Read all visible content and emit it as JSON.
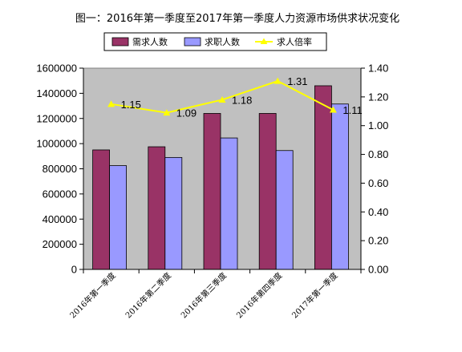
{
  "chart_data": {
    "type": "bar",
    "title": "图一：2016年第一季度至2017年第一季度人力资源市场供求状况变化",
    "categories": [
      "2016年第一季度",
      "2016年第二季度",
      "2016年第三季度",
      "2016年第四季度",
      "2017年第一季度"
    ],
    "series": [
      {
        "name": "需求人数",
        "type": "bar",
        "axis": "left",
        "color": "#993366",
        "values": [
          950000,
          975000,
          1240000,
          1240000,
          1460000
        ]
      },
      {
        "name": "求职人数",
        "type": "bar",
        "axis": "left",
        "color": "#9999ff",
        "values": [
          825000,
          890000,
          1045000,
          945000,
          1315000
        ]
      },
      {
        "name": "求人倍率",
        "type": "line",
        "axis": "right",
        "color": "#ffff00",
        "values": [
          1.15,
          1.09,
          1.18,
          1.31,
          1.11
        ],
        "labels": [
          "1.15",
          "1.09",
          "1.18",
          "1.31",
          "1.11"
        ]
      }
    ],
    "y_left": {
      "min": 0,
      "max": 1600000,
      "step": 200000,
      "ticks": [
        "0",
        "200000",
        "400000",
        "600000",
        "800000",
        "1000000",
        "1200000",
        "1400000",
        "1600000"
      ]
    },
    "y_right": {
      "min": 0,
      "max": 1.4,
      "step": 0.2,
      "ticks": [
        "0.00",
        "0.20",
        "0.40",
        "0.60",
        "0.80",
        "1.00",
        "1.20",
        "1.40"
      ]
    },
    "plot_background": "#c0c0c0",
    "grid": false,
    "legend_position": "top"
  }
}
